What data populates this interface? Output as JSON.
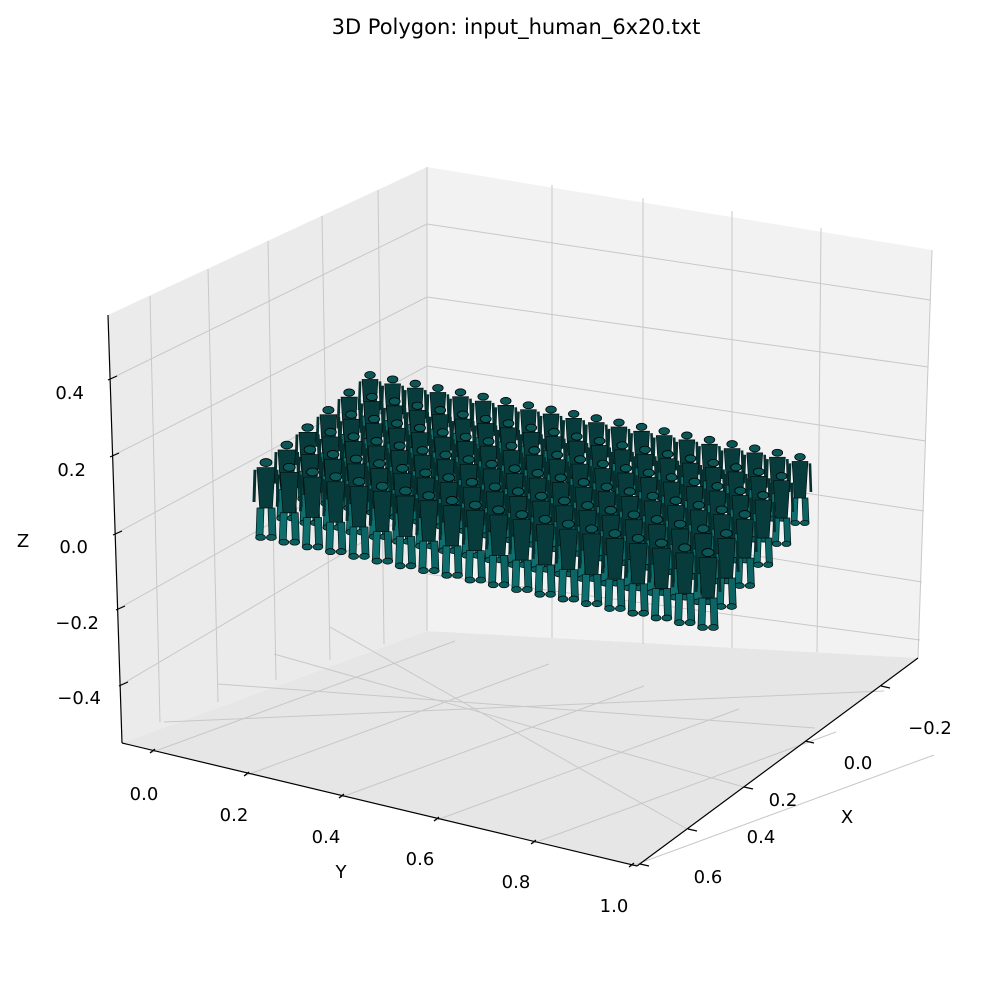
{
  "chart_data": {
    "type": "3d-polygon",
    "title": "3D Polygon: input_human_6x20.txt",
    "xlabel": "X",
    "ylabel": "Y",
    "zlabel": "Z",
    "x_ticks": [
      "−0.2",
      "0.0",
      "0.2",
      "0.4",
      "0.6"
    ],
    "y_ticks": [
      "0.0",
      "0.2",
      "0.4",
      "0.6",
      "0.8",
      "1.0"
    ],
    "z_ticks": [
      "−0.4",
      "−0.2",
      "0.0",
      "0.2",
      "0.4"
    ],
    "xlim": [
      -0.3,
      0.7
    ],
    "ylim": [
      -0.05,
      1.05
    ],
    "zlim": [
      -0.5,
      0.5
    ],
    "grid": true,
    "grid_rows": 6,
    "grid_cols": 20,
    "face_color": "#0b5e5e",
    "edge_color": "#000000",
    "pane_colors": [
      "#f2f2f2",
      "#e6e6e6",
      "#ebebeb"
    ]
  }
}
